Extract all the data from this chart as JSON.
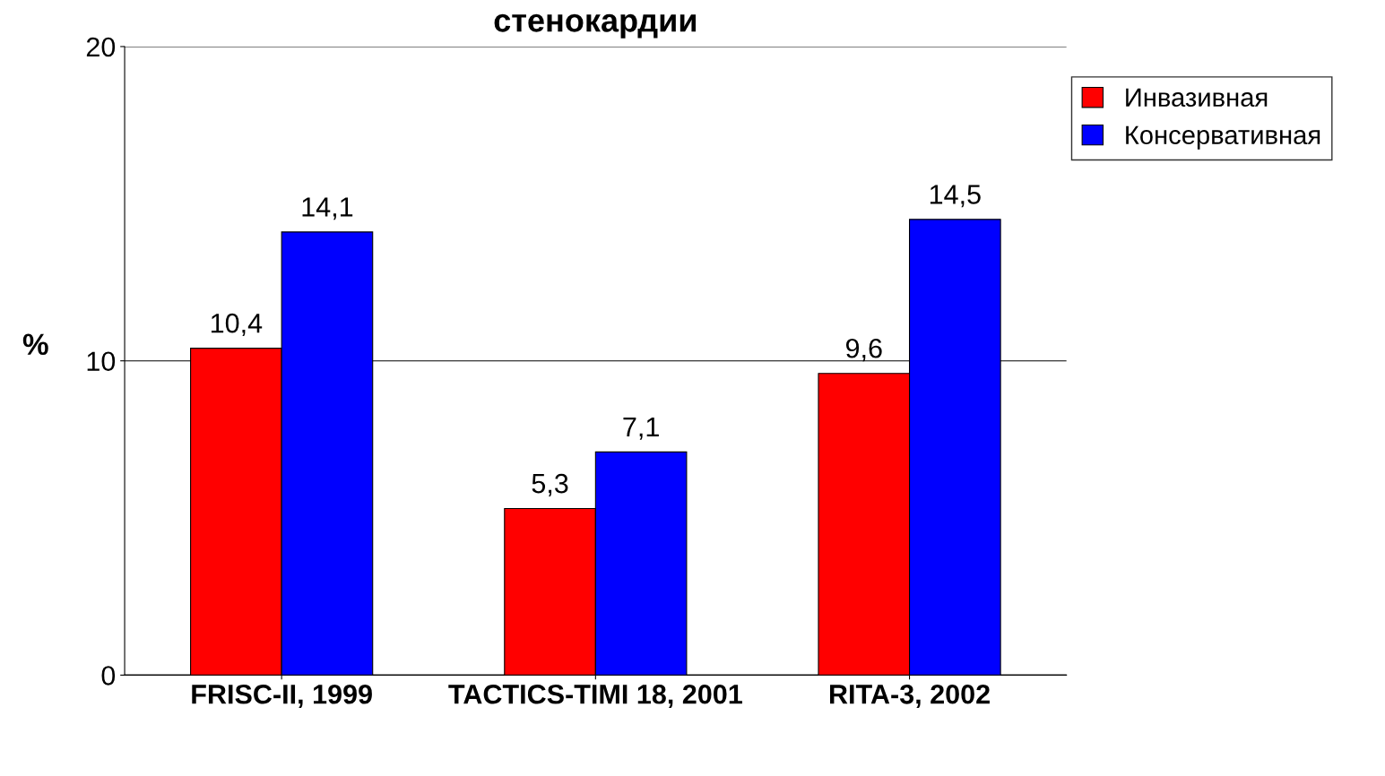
{
  "chart_data": {
    "type": "bar",
    "title": "стенокардии",
    "ylabel": "%",
    "categories": [
      "FRISC-II, 1999",
      "TACTICS-TIMI 18, 2001",
      "RITA-3, 2002"
    ],
    "series": [
      {
        "name": "Инвазивная",
        "color": "#ff0000",
        "values": [
          10.4,
          5.3,
          9.6
        ],
        "value_labels": [
          "10,4",
          "5,3",
          "9,6"
        ]
      },
      {
        "name": "Консервативная",
        "color": "#0000ff",
        "values": [
          14.1,
          7.1,
          14.5
        ],
        "value_labels": [
          "14,1",
          "7,1",
          "14,5"
        ]
      }
    ],
    "ylim": [
      0,
      20
    ],
    "yticks": [
      0,
      10,
      20
    ],
    "grid": "y",
    "legend": "top right"
  }
}
